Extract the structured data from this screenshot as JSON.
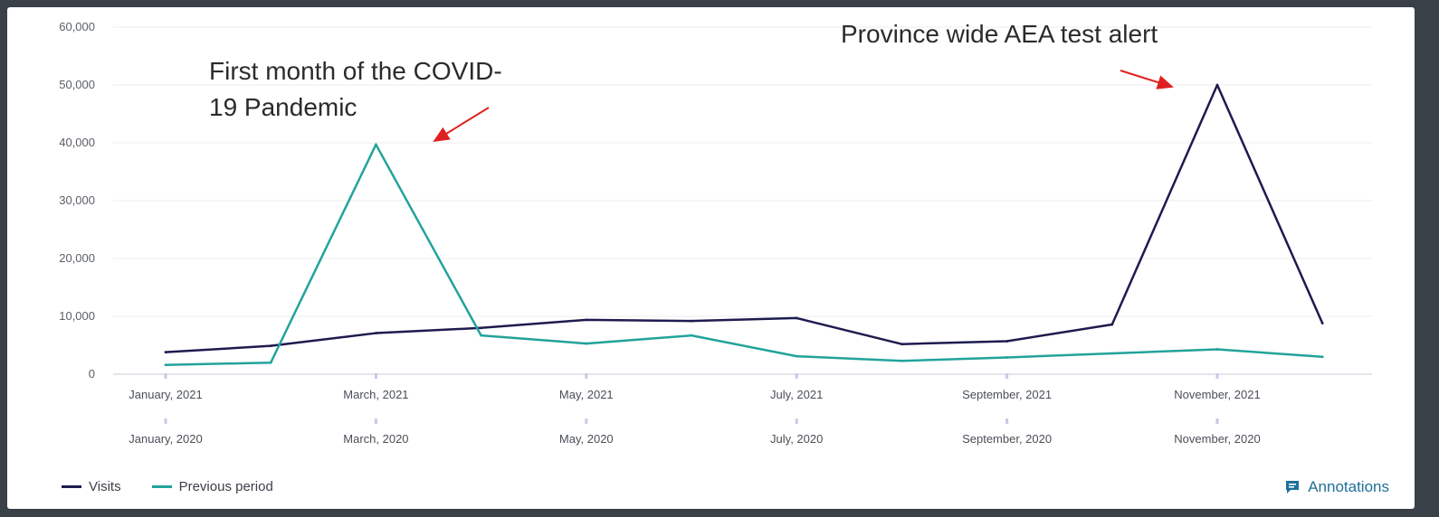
{
  "chart_data": {
    "type": "line",
    "ylim": [
      0,
      60000
    ],
    "yticks": [
      "0",
      "10,000",
      "20,000",
      "30,000",
      "40,000",
      "50,000",
      "60,000"
    ],
    "ytick_values": [
      0,
      10000,
      20000,
      30000,
      40000,
      50000,
      60000
    ],
    "x_labels_primary": [
      "January, 2021",
      "March, 2021",
      "May, 2021",
      "July, 2021",
      "September, 2021",
      "November, 2021"
    ],
    "x_labels_secondary": [
      "January, 2020",
      "March, 2020",
      "May, 2020",
      "July, 2020",
      "September, 2020",
      "November, 2020"
    ],
    "series": [
      {
        "name": "Visits",
        "color": "#1e1b4f",
        "months": [
          "January, 2021",
          "February, 2021",
          "March, 2021",
          "April, 2021",
          "May, 2021",
          "June, 2021",
          "July, 2021",
          "August, 2021",
          "September, 2021",
          "October, 2021",
          "November, 2021",
          "December, 2021"
        ],
        "values": [
          3800,
          4900,
          7100,
          8000,
          9400,
          9200,
          9700,
          5200,
          5700,
          8600,
          50000,
          8800
        ]
      },
      {
        "name": "Previous period",
        "color": "#22a39b",
        "months": [
          "January, 2020",
          "February, 2020",
          "March, 2020",
          "April, 2020",
          "May, 2020",
          "June, 2020",
          "July, 2020",
          "August, 2020",
          "September, 2020",
          "October, 2020",
          "November, 2020",
          "December, 2020"
        ],
        "values": [
          1600,
          2000,
          39700,
          6700,
          5300,
          6700,
          3100,
          2300,
          2900,
          3600,
          4300,
          3000
        ]
      }
    ],
    "annotations": [
      {
        "text_lines": [
          "First month of the COVID-",
          "19 Pandemic"
        ],
        "series": "Previous period",
        "point_index": 2
      },
      {
        "text_lines": [
          "Province wide AEA test alert"
        ],
        "series": "Visits",
        "point_index": 10
      }
    ],
    "arrow_color": "#e02020",
    "grid": true,
    "legend_position": "bottom-left"
  },
  "footer": {
    "annotations_label": "Annotations",
    "link_color": "#1f6f99"
  }
}
